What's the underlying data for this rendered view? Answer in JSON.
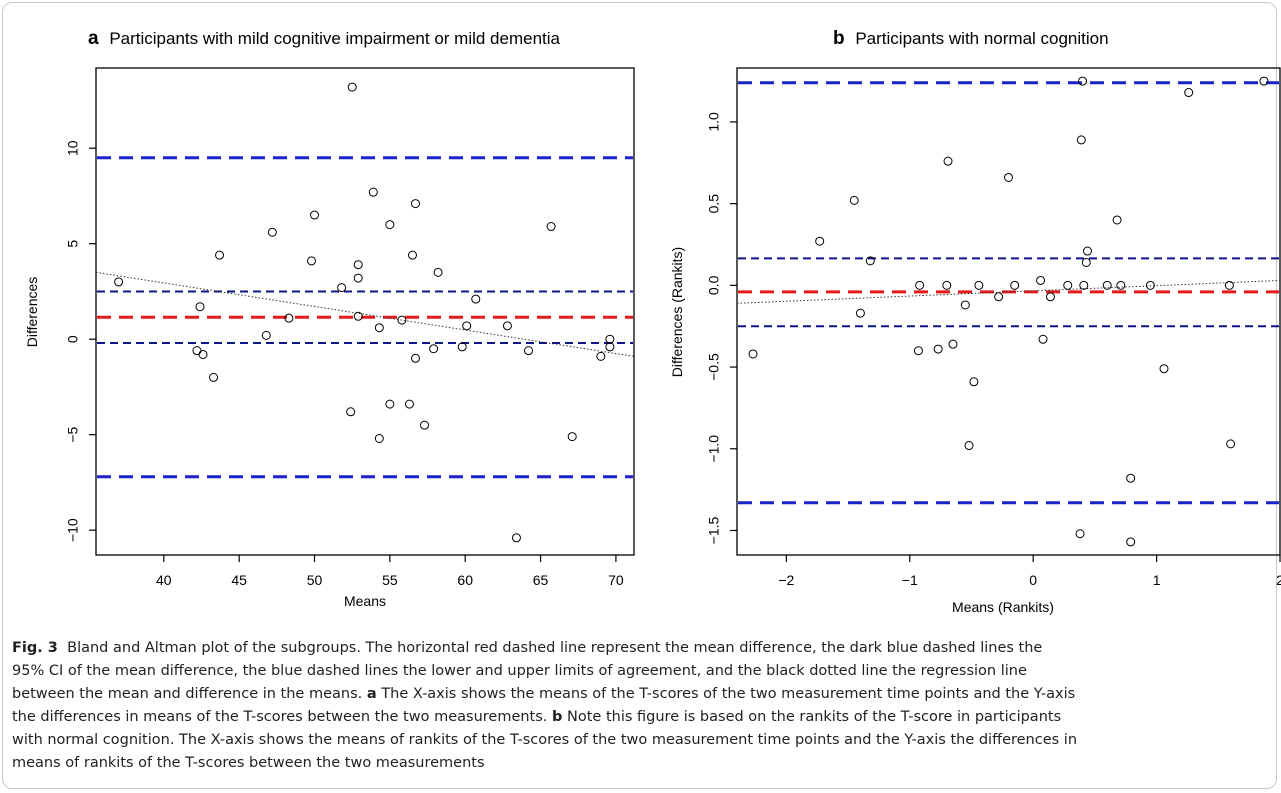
{
  "chart_data": [
    {
      "type": "scatter",
      "panel_letter": "a",
      "title": "Participants with mild cognitive impairment or mild dementia",
      "xlabel": "Means",
      "ylabel": "Differences",
      "xlim": [
        35.5,
        71.2
      ],
      "ylim": [
        -11.3,
        14.2
      ],
      "xticks": [
        40,
        45,
        50,
        55,
        60,
        65,
        70
      ],
      "yticks": [
        -10,
        -5,
        0,
        5,
        10
      ],
      "grid": false,
      "points": [
        [
          37.0,
          3.0
        ],
        [
          42.2,
          -0.6
        ],
        [
          42.4,
          1.7
        ],
        [
          42.6,
          -0.8
        ],
        [
          43.3,
          -2.0
        ],
        [
          43.7,
          4.4
        ],
        [
          46.8,
          0.2
        ],
        [
          47.2,
          5.6
        ],
        [
          48.3,
          1.1
        ],
        [
          49.8,
          4.1
        ],
        [
          50.0,
          6.5
        ],
        [
          51.8,
          2.7
        ],
        [
          52.4,
          -3.8
        ],
        [
          52.5,
          13.2
        ],
        [
          52.9,
          1.2
        ],
        [
          52.9,
          3.2
        ],
        [
          52.9,
          3.9
        ],
        [
          53.9,
          7.7
        ],
        [
          54.3,
          -5.2
        ],
        [
          54.3,
          0.6
        ],
        [
          55.0,
          -3.4
        ],
        [
          55.0,
          6.0
        ],
        [
          55.8,
          1.0
        ],
        [
          56.3,
          -3.4
        ],
        [
          56.5,
          4.4
        ],
        [
          56.7,
          -1.0
        ],
        [
          56.7,
          7.1
        ],
        [
          57.3,
          -4.5
        ],
        [
          57.9,
          -0.5
        ],
        [
          58.2,
          3.5
        ],
        [
          59.8,
          -0.4
        ],
        [
          60.1,
          0.7
        ],
        [
          60.7,
          2.1
        ],
        [
          62.8,
          0.7
        ],
        [
          63.4,
          -10.4
        ],
        [
          64.2,
          -0.6
        ],
        [
          65.7,
          5.9
        ],
        [
          67.1,
          -5.1
        ],
        [
          69.0,
          -0.9
        ],
        [
          69.6,
          0.0
        ],
        [
          69.6,
          -0.4
        ]
      ],
      "reference_lines": [
        {
          "kind": "mean_difference",
          "y": 1.15,
          "color": "#e8191a"
        },
        {
          "kind": "ci_upper",
          "y": 2.5,
          "color": "#0c1585"
        },
        {
          "kind": "ci_lower",
          "y": -0.2,
          "color": "#0c1585"
        },
        {
          "kind": "upper_limit_of_agreement",
          "y": 9.5,
          "color": "#1a23cc"
        },
        {
          "kind": "lower_limit_of_agreement",
          "y": -7.2,
          "color": "#1a23cc"
        }
      ],
      "regression_line": [
        [
          35.5,
          3.5
        ],
        [
          71.2,
          -0.9
        ]
      ]
    },
    {
      "type": "scatter",
      "panel_letter": "b",
      "title": "Participants with normal cognition",
      "xlabel": "Means (Rankits)",
      "ylabel": "Differences (Rankits)",
      "xlim": [
        -2.4,
        2.0
      ],
      "ylim": [
        -1.65,
        1.33
      ],
      "xticks": [
        -2,
        -1,
        0,
        1,
        2
      ],
      "yticks": [
        -1.5,
        -1.0,
        -0.5,
        0.0,
        0.5,
        1.0
      ],
      "ytick_labels": [
        "−1.5",
        "−1.0",
        "−0.5",
        "0.0",
        "0.5",
        "1.0"
      ],
      "xtick_labels": [
        "−2",
        "−1",
        "0",
        "1",
        "2"
      ],
      "grid": false,
      "points": [
        [
          -2.27,
          -0.42
        ],
        [
          -1.73,
          0.27
        ],
        [
          -1.45,
          0.52
        ],
        [
          -1.4,
          -0.17
        ],
        [
          -1.32,
          0.15
        ],
        [
          -0.93,
          -0.4
        ],
        [
          -0.92,
          0.0
        ],
        [
          -0.77,
          -0.39
        ],
        [
          -0.7,
          0.0
        ],
        [
          -0.69,
          0.76
        ],
        [
          -0.65,
          -0.36
        ],
        [
          -0.55,
          -0.12
        ],
        [
          -0.52,
          -0.98
        ],
        [
          -0.48,
          -0.59
        ],
        [
          -0.44,
          0.0
        ],
        [
          -0.28,
          -0.07
        ],
        [
          -0.2,
          0.66
        ],
        [
          -0.15,
          0.0
        ],
        [
          0.06,
          0.03
        ],
        [
          0.08,
          -0.33
        ],
        [
          0.14,
          -0.07
        ],
        [
          0.28,
          0.0
        ],
        [
          0.38,
          -1.52
        ],
        [
          0.39,
          0.89
        ],
        [
          0.4,
          1.25
        ],
        [
          0.41,
          0.0
        ],
        [
          0.43,
          0.14
        ],
        [
          0.44,
          0.21
        ],
        [
          0.6,
          0.0
        ],
        [
          0.68,
          0.4
        ],
        [
          0.71,
          0.0
        ],
        [
          0.79,
          -1.18
        ],
        [
          0.79,
          -1.57
        ],
        [
          0.95,
          0.0
        ],
        [
          1.06,
          -0.51
        ],
        [
          1.26,
          1.18
        ],
        [
          1.59,
          0.0
        ],
        [
          1.6,
          -0.97
        ],
        [
          1.87,
          1.25
        ]
      ],
      "reference_lines": [
        {
          "kind": "mean_difference",
          "y": -0.04,
          "color": "#e8191a"
        },
        {
          "kind": "ci_upper",
          "y": 0.165,
          "color": "#0c1585"
        },
        {
          "kind": "ci_lower",
          "y": -0.25,
          "color": "#0c1585"
        },
        {
          "kind": "upper_limit_of_agreement",
          "y": 1.24,
          "color": "#1a23cc"
        },
        {
          "kind": "lower_limit_of_agreement",
          "y": -1.33,
          "color": "#1a23cc"
        }
      ],
      "regression_line": [
        [
          -2.4,
          -0.11
        ],
        [
          2.0,
          0.03
        ]
      ]
    }
  ],
  "caption": {
    "fig_label": "Fig. 3",
    "line1": "Bland and Altman plot of the subgroups. The horizontal red dashed line represent the mean difference, the dark blue dashed lines the",
    "line2": "95% CI of the mean difference, the blue dashed lines the lower and upper limits of agreement, and the black dotted line the regression line",
    "line3_pre": "between the mean and difference in the means.",
    "line3_letter": "a",
    "line3_post": "The X-axis shows the means of the T-scores of the two measurement time points and the Y-axis",
    "line4": "the differences in means of the T-scores between the two measurements.",
    "line4_letter": "b",
    "line4_post": "Note this figure is based on the rankits of the T-score in participants",
    "line5": "with normal cognition. The X-axis shows the means of rankits of the T-scores of the two measurement time points and the Y-axis the differences in",
    "line6": "means of rankits of the T-scores between the two measurements"
  }
}
